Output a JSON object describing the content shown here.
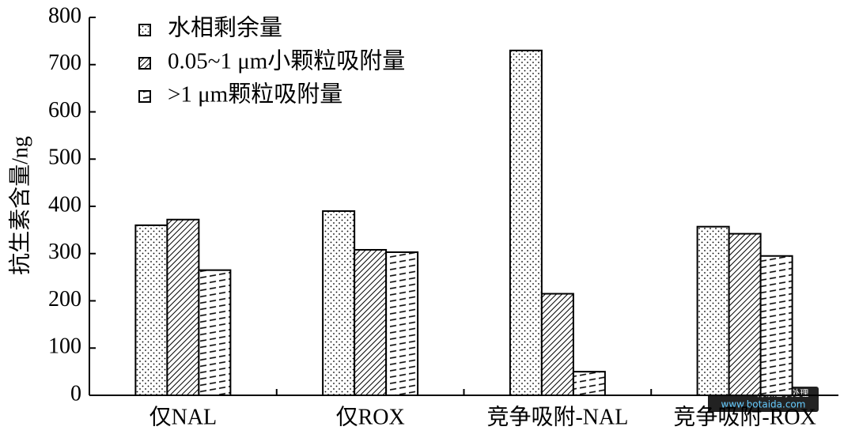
{
  "chart_data": {
    "type": "bar",
    "y_label": "抗生素含量/ng",
    "categories": [
      "仅NAL",
      "仅ROX",
      "竞争吸附-NAL",
      "竞争吸附-ROX"
    ],
    "series": [
      {
        "name": "水相剩余量",
        "color": "#000000",
        "pattern": "dots",
        "values": [
          360,
          390,
          730,
          357
        ]
      },
      {
        "name": "0.05~1 μm小颗粒吸附量",
        "color": "#000000",
        "pattern": "hatch",
        "values": [
          372,
          308,
          215,
          342
        ]
      },
      {
        "name": ">1 μm颗粒吸附量",
        "color": "#000000",
        "pattern": "dashes",
        "values": [
          265,
          303,
          50,
          295
        ]
      }
    ],
    "ylim": [
      0,
      800
    ],
    "yticks": [
      0,
      100,
      200,
      300,
      400,
      500,
      600,
      700,
      800
    ],
    "grid": false,
    "legend": "top-left",
    "watermark": [
      "BOTAIDA博泰达水处理",
      "www.botaida.com"
    ]
  }
}
